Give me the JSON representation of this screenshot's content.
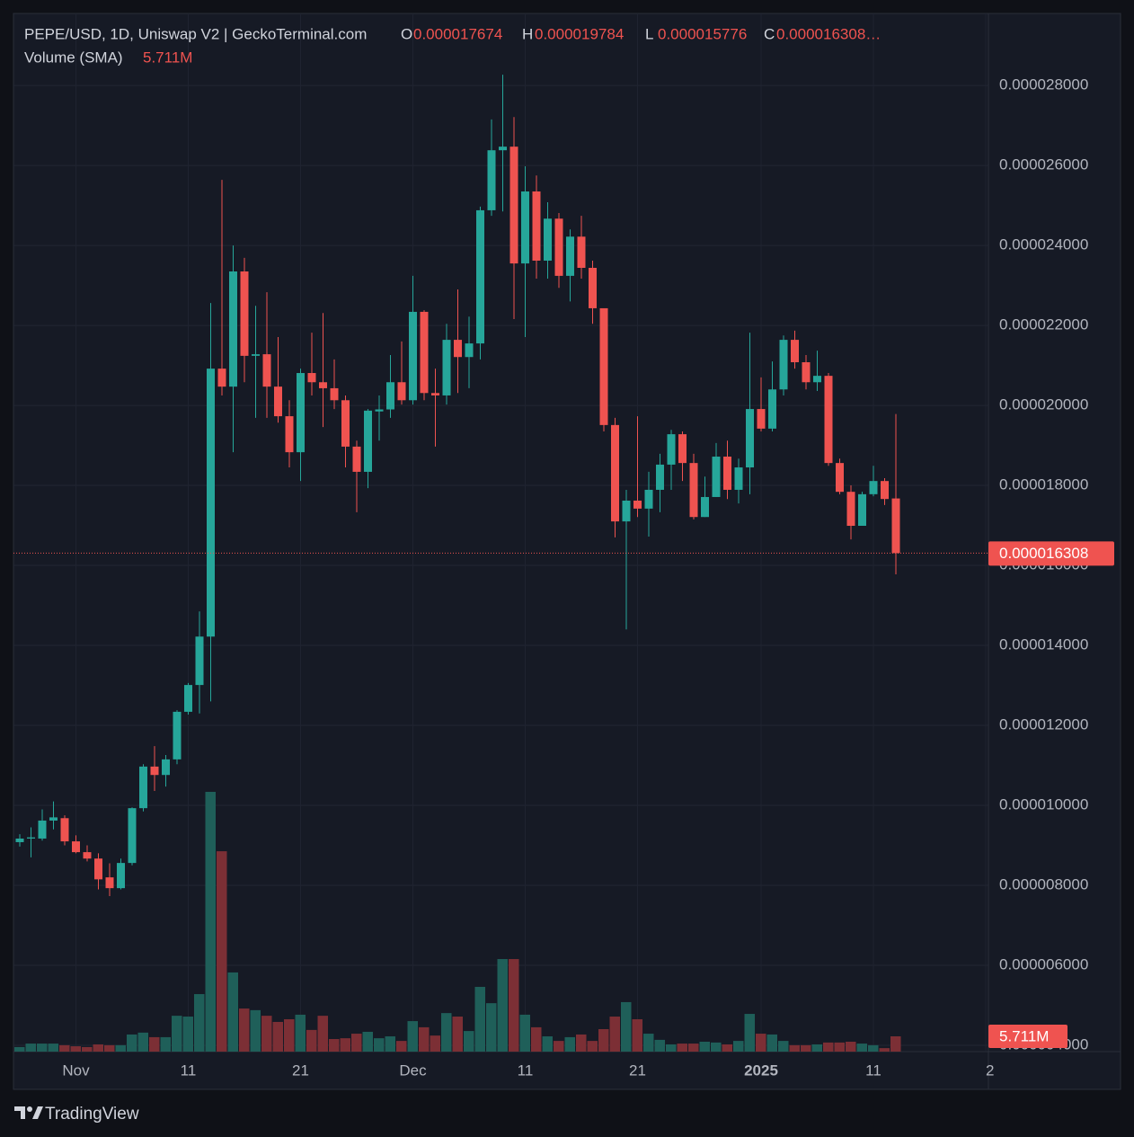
{
  "header": {
    "symbol": "PEPE/USD, 1D, Uniswap V2 | GeckoTerminal.com",
    "ohlc": [
      {
        "key": "O",
        "value": "0.000017674"
      },
      {
        "key": "H",
        "value": "0.000019784"
      },
      {
        "key": "L",
        "value": "0.000015776"
      },
      {
        "key": "C",
        "value": "0.000016308…"
      }
    ],
    "volume_title": "Volume (SMA)",
    "volume_value": "5.711M"
  },
  "branding": "TradingView",
  "chart_data": {
    "type": "candlestick",
    "open": [
      9.08e-06,
      9.17e-06,
      9.17e-06,
      9.62e-06,
      9.68e-06,
      9.1e-06,
      8.83e-06,
      8.67e-06,
      8.2e-06,
      7.93e-06,
      8.56e-06,
      9.93e-06,
      1.097e-05,
      1.076e-05,
      1.115e-05,
      1.234e-05,
      1.301e-05,
      1.422e-05,
      2.092e-05,
      2.047e-05,
      2.335e-05,
      2.124e-05,
      2.128e-05,
      2.047e-05,
      1.973e-05,
      1.883e-05,
      2.081e-05,
      2.058e-05,
      2.043e-05,
      2.013e-05,
      1.897e-05,
      1.834e-05,
      1.985e-05,
      1.99e-05,
      2.058e-05,
      2.013e-05,
      2.234e-05,
      2.031e-05,
      2.025e-05,
      2.164e-05,
      2.121e-05,
      2.155e-05,
      2.488e-05,
      2.638e-05,
      2.647e-05,
      2.355e-05,
      2.535e-05,
      2.362e-05,
      2.467e-05,
      2.324e-05,
      2.422e-05,
      2.344e-05,
      2.243e-05,
      1.951e-05,
      1.71e-05,
      1.762e-05,
      1.742e-05,
      1.789e-05,
      1.852e-05,
      1.928e-05,
      1.856e-05,
      1.721e-05,
      1.771e-05,
      1.872e-05,
      1.789e-05,
      1.845e-05,
      1.991e-05,
      1.942e-05,
      2.04e-05,
      2.164e-05,
      2.108e-05,
      2.058e-05,
      2.074e-05,
      1.856e-05,
      1.784e-05,
      1.699e-05,
      1.778e-05,
      1.811e-05,
      1.7674e-05
    ],
    "high": [
      9.28e-06,
      9.45e-06,
      9.9e-06,
      1.01e-05,
      9.75e-06,
      9.25e-06,
      9e-06,
      8.8e-06,
      8.55e-06,
      8.67e-06,
      9.95e-06,
      1.103e-05,
      1.148e-05,
      1.126e-05,
      1.238e-05,
      1.306e-05,
      1.485e-05,
      2.256e-05,
      2.564e-05,
      2.4e-05,
      2.369e-05,
      2.249e-05,
      2.283e-05,
      2.171e-05,
      2.013e-05,
      2.092e-05,
      2.182e-05,
      2.231e-05,
      2.115e-05,
      2.025e-05,
      1.912e-05,
      1.991e-05,
      2.025e-05,
      2.126e-05,
      2.16e-05,
      2.324e-05,
      2.238e-05,
      2.092e-05,
      2.204e-05,
      2.29e-05,
      2.222e-05,
      2.497e-05,
      2.715e-05,
      2.827e-05,
      2.721e-05,
      2.598e-05,
      2.575e-05,
      2.508e-05,
      2.481e-05,
      2.44e-05,
      2.474e-05,
      2.362e-05,
      2.243e-05,
      1.969e-05,
      1.789e-05,
      1.973e-05,
      1.834e-05,
      1.879e-05,
      1.939e-05,
      1.935e-05,
      1.879e-05,
      1.822e-05,
      1.906e-05,
      1.912e-05,
      1.867e-05,
      2.182e-05,
      2.07e-05,
      2.11e-05,
      2.175e-05,
      2.187e-05,
      2.126e-05,
      2.137e-05,
      2.081e-05,
      1.867e-05,
      1.8e-05,
      1.784e-05,
      1.849e-05,
      1.818e-05,
      1.9784e-05
    ],
    "low": [
      8.97e-06,
      8.7e-06,
      9.12e-06,
      9.4e-06,
      9e-06,
      8.8e-06,
      8.6e-06,
      7.9e-06,
      7.73e-06,
      7.9e-06,
      8.5e-06,
      9.85e-06,
      1.036e-05,
      1.047e-05,
      1.103e-05,
      1.227e-05,
      1.23e-05,
      1.26e-05,
      2.025e-05,
      1.883e-05,
      2.058e-05,
      1.969e-05,
      1.969e-05,
      1.957e-05,
      1.845e-05,
      1.811e-05,
      2.025e-05,
      1.946e-05,
      1.991e-05,
      1.845e-05,
      1.733e-05,
      1.793e-05,
      1.912e-05,
      1.969e-05,
      2.002e-05,
      2.002e-05,
      2.013e-05,
      1.897e-05,
      2.002e-05,
      2.031e-05,
      2.043e-05,
      2.115e-05,
      2.474e-05,
      2.485e-05,
      2.216e-05,
      2.171e-05,
      2.317e-05,
      2.317e-05,
      2.294e-05,
      2.26e-05,
      2.317e-05,
      2.204e-05,
      1.935e-05,
      1.67e-05,
      1.44e-05,
      1.721e-05,
      1.672e-05,
      1.733e-05,
      1.789e-05,
      1.811e-05,
      1.715e-05,
      1.721e-05,
      1.771e-05,
      1.766e-05,
      1.755e-05,
      1.778e-05,
      1.935e-05,
      1.935e-05,
      2.025e-05,
      2.092e-05,
      2.04e-05,
      2.036e-05,
      1.849e-05,
      1.778e-05,
      1.665e-05,
      1.699e-05,
      1.773e-05,
      1.751e-05,
      1.5776e-05
    ],
    "close": [
      9.17e-06,
      9.2e-06,
      9.62e-06,
      9.7e-06,
      9.1e-06,
      8.83e-06,
      8.67e-06,
      8.15e-06,
      7.93e-06,
      8.56e-06,
      9.93e-06,
      1.097e-05,
      1.076e-05,
      1.115e-05,
      1.234e-05,
      1.301e-05,
      1.422e-05,
      2.092e-05,
      2.047e-05,
      2.335e-05,
      2.124e-05,
      2.128e-05,
      2.047e-05,
      1.973e-05,
      1.883e-05,
      2.081e-05,
      2.058e-05,
      2.043e-05,
      2.013e-05,
      1.897e-05,
      1.834e-05,
      1.987e-05,
      1.99e-05,
      2.058e-05,
      2.013e-05,
      2.234e-05,
      2.031e-05,
      2.025e-05,
      2.164e-05,
      2.121e-05,
      2.155e-05,
      2.488e-05,
      2.638e-05,
      2.647e-05,
      2.355e-05,
      2.535e-05,
      2.362e-05,
      2.467e-05,
      2.324e-05,
      2.422e-05,
      2.344e-05,
      2.243e-05,
      1.951e-05,
      1.71e-05,
      1.762e-05,
      1.742e-05,
      1.789e-05,
      1.852e-05,
      1.928e-05,
      1.856e-05,
      1.721e-05,
      1.771e-05,
      1.872e-05,
      1.789e-05,
      1.845e-05,
      1.991e-05,
      1.942e-05,
      2.04e-05,
      2.164e-05,
      2.108e-05,
      2.058e-05,
      2.074e-05,
      1.856e-05,
      1.784e-05,
      1.699e-05,
      1.778e-05,
      1.811e-05,
      1.766e-05,
      1.6308e-05
    ],
    "volume": [
      1700000,
      3000000,
      3000000,
      3000000,
      2400000,
      2000000,
      1700000,
      2700000,
      2400000,
      2400000,
      6400000,
      7100000,
      5400000,
      5400000,
      13400000,
      13100000,
      21500000,
      97100000,
      74900000,
      29600000,
      16100000,
      15500000,
      13400000,
      11100000,
      12100000,
      13800000,
      8100000,
      13400000,
      4700000,
      5000000,
      6700000,
      7400000,
      5000000,
      5700000,
      4000000,
      11400000,
      9100000,
      6000000,
      14400000,
      13100000,
      7700000,
      24200000,
      18100000,
      34600000,
      34600000,
      13800000,
      9100000,
      5700000,
      4000000,
      5400000,
      6400000,
      4000000,
      8400000,
      13100000,
      18500000,
      12100000,
      6700000,
      4400000,
      2700000,
      3000000,
      3000000,
      3700000,
      3400000,
      2700000,
      4000000,
      14100000,
      6700000,
      6400000,
      4000000,
      2400000,
      2400000,
      2700000,
      3400000,
      3400000,
      3700000,
      3000000,
      2400000,
      1300000,
      5711000
    ],
    "up_color": "#26a69a",
    "down_color": "#ef5350",
    "volume_up_color": "#1f5f59",
    "volume_down_color": "#7c2f35",
    "ylim": [
      3.843e-06,
      2.98e-05
    ],
    "yticks": [
      {
        "value": 4e-06,
        "label": "0.000004000"
      },
      {
        "value": 6e-06,
        "label": "0.000006000"
      },
      {
        "value": 8e-06,
        "label": "0.000008000"
      },
      {
        "value": 1e-05,
        "label": "0.000010000"
      },
      {
        "value": 1.2e-05,
        "label": "0.000012000"
      },
      {
        "value": 1.4e-05,
        "label": "0.000014000"
      },
      {
        "value": 1.6e-05,
        "label": "0.000016000"
      },
      {
        "value": 1.8e-05,
        "label": "0.000018000"
      },
      {
        "value": 2e-05,
        "label": "0.000020000"
      },
      {
        "value": 2.2e-05,
        "label": "0.000022000"
      },
      {
        "value": 2.4e-05,
        "label": "0.000024000"
      },
      {
        "value": 2.6e-05,
        "label": "0.000026000"
      },
      {
        "value": 2.8e-05,
        "label": "0.000028000"
      }
    ],
    "xlim": [
      -0.56,
      86.24
    ],
    "xticks": [
      {
        "value": 5,
        "label": "Nov"
      },
      {
        "value": 15,
        "label": "11"
      },
      {
        "value": 25,
        "label": "21"
      },
      {
        "value": 35,
        "label": "Dec"
      },
      {
        "value": 45,
        "label": "11"
      },
      {
        "value": 55,
        "label": "21"
      },
      {
        "value": 66,
        "label": "2025"
      },
      {
        "value": 76,
        "label": "11"
      },
      {
        "value": 86,
        "label": "2"
      }
    ],
    "last_price": {
      "value": 1.6308e-05,
      "label": "0.000016308"
    },
    "last_volume": {
      "value": 5711000,
      "label": "5.711M"
    },
    "grid": true
  }
}
